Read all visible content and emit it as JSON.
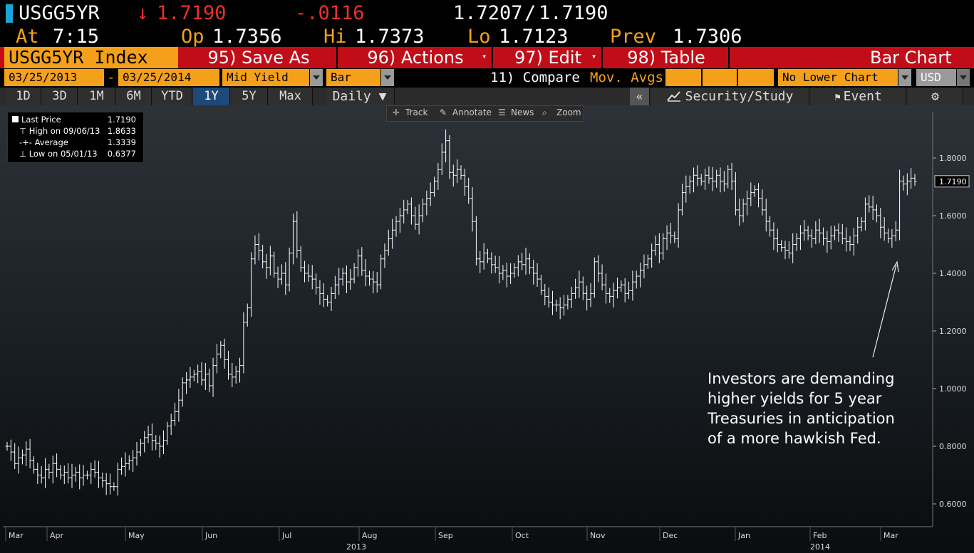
{
  "quote": {
    "ticker": "USGG5YR",
    "arrow": "↓",
    "last": "1.7190",
    "change": "-.0116",
    "bid_ask": "1.7207",
    "slash": "/",
    "ask": "1.7190",
    "at_label": "At",
    "time": "7:15",
    "op_label": "Op",
    "open": "1.7356",
    "hi_label": "Hi",
    "high": "1.7373",
    "lo_label": "Lo",
    "low": "1.7123",
    "prev_label": "Prev",
    "prev": "1.7306"
  },
  "toolbar": {
    "index_label": "USGG5YR Index",
    "save_as": "95) Save As",
    "actions": "96) Actions",
    "edit": "97) Edit",
    "table": "98) Table",
    "chart_type": "Bar Chart"
  },
  "settings": {
    "start_date": "03/25/2013",
    "dash": "-",
    "end_date": "03/25/2014",
    "field": "Mid Yield",
    "style": "Bar",
    "compare": "11) Compare",
    "mov_avgs": "Mov. Avgs",
    "lower_chart": "No Lower Chart",
    "currency": "USD"
  },
  "periods": [
    "1D",
    "3D",
    "1M",
    "6M",
    "YTD",
    "1Y",
    "5Y",
    "Max"
  ],
  "active_period": "1Y",
  "frequency": "Daily ▼",
  "right_tools": {
    "collapse": "«",
    "security_study": "Security/Study",
    "event": "Event",
    "gear": "⚙"
  },
  "chart_tools": {
    "track": "Track",
    "annotate": "Annotate",
    "news": "News",
    "zoom": "Zoom"
  },
  "legend": {
    "last_label": "Last Price",
    "last_value": "1.7190",
    "high_label": "High on 09/06/13",
    "high_value": "1.8633",
    "avg_label": "Average",
    "avg_value": "1.3339",
    "low_label": "Low on 05/01/13",
    "low_value": "0.6377"
  },
  "annotation": {
    "lines": [
      "Investors are demanding",
      "higher yields for 5 year",
      "Treasuries in anticipation",
      "of a more hawkish Fed."
    ]
  },
  "colors": {
    "orange": "#f4a01b",
    "red": "#e5322d",
    "toolbar_red": "#c00d18",
    "active_blue": "#1d4a79"
  },
  "chart_data": {
    "type": "bar",
    "title": "",
    "xlabel": "",
    "ylabel": "",
    "ylim": [
      0.52,
      1.92
    ],
    "yticks": [
      0.6,
      0.8,
      1.0,
      1.2,
      1.4,
      1.6,
      1.8
    ],
    "ytick_labels": [
      "0.6000",
      "0.8000",
      "1.0000",
      "1.2000",
      "1.4000",
      "1.6000",
      "1.8000"
    ],
    "last_price_label": "1.7190",
    "last_price": 1.719,
    "x_month_labels": [
      "Mar",
      "Apr",
      "May",
      "Jun",
      "Jul",
      "Aug",
      "Sep",
      "Oct",
      "Nov",
      "Dec",
      "Jan",
      "Feb",
      "Mar"
    ],
    "x_year_labels": [
      "2013",
      "2014"
    ],
    "closes": [
      0.8,
      0.78,
      0.74,
      0.76,
      0.77,
      0.79,
      0.75,
      0.72,
      0.7,
      0.69,
      0.72,
      0.71,
      0.74,
      0.72,
      0.7,
      0.71,
      0.69,
      0.7,
      0.71,
      0.69,
      0.7,
      0.7,
      0.72,
      0.71,
      0.69,
      0.68,
      0.67,
      0.66,
      0.66,
      0.72,
      0.73,
      0.74,
      0.75,
      0.76,
      0.78,
      0.81,
      0.83,
      0.84,
      0.82,
      0.81,
      0.8,
      0.82,
      0.87,
      0.89,
      0.92,
      0.96,
      1.02,
      1.03,
      1.04,
      1.05,
      1.06,
      1.03,
      1.05,
      1.01,
      1.08,
      1.12,
      1.15,
      1.1,
      1.05,
      1.04,
      1.06,
      1.08,
      1.23,
      1.28,
      1.45,
      1.5,
      1.48,
      1.44,
      1.42,
      1.46,
      1.4,
      1.38,
      1.4,
      1.36,
      1.47,
      1.58,
      1.48,
      1.42,
      1.4,
      1.39,
      1.38,
      1.35,
      1.33,
      1.31,
      1.3,
      1.33,
      1.36,
      1.38,
      1.4,
      1.37,
      1.38,
      1.42,
      1.46,
      1.41,
      1.39,
      1.38,
      1.37,
      1.36,
      1.45,
      1.48,
      1.52,
      1.55,
      1.58,
      1.6,
      1.62,
      1.64,
      1.6,
      1.57,
      1.6,
      1.64,
      1.66,
      1.68,
      1.72,
      1.76,
      1.82,
      1.86,
      1.75,
      1.74,
      1.76,
      1.74,
      1.7,
      1.66,
      1.58,
      1.45,
      1.44,
      1.47,
      1.45,
      1.43,
      1.42,
      1.4,
      1.41,
      1.39,
      1.4,
      1.42,
      1.44,
      1.43,
      1.45,
      1.42,
      1.4,
      1.38,
      1.34,
      1.32,
      1.3,
      1.29,
      1.29,
      1.28,
      1.29,
      1.31,
      1.33,
      1.35,
      1.37,
      1.33,
      1.31,
      1.33,
      1.44,
      1.4,
      1.36,
      1.33,
      1.32,
      1.34,
      1.35,
      1.36,
      1.33,
      1.34,
      1.37,
      1.39,
      1.41,
      1.43,
      1.45,
      1.48,
      1.5,
      1.47,
      1.52,
      1.54,
      1.53,
      1.52,
      1.62,
      1.68,
      1.7,
      1.72,
      1.74,
      1.73,
      1.72,
      1.74,
      1.73,
      1.72,
      1.74,
      1.72,
      1.71,
      1.76,
      1.72,
      1.62,
      1.6,
      1.64,
      1.66,
      1.68,
      1.69,
      1.66,
      1.62,
      1.58,
      1.55,
      1.52,
      1.5,
      1.49,
      1.48,
      1.47,
      1.5,
      1.52,
      1.54,
      1.55,
      1.53,
      1.52,
      1.55,
      1.54,
      1.52,
      1.51,
      1.53,
      1.55,
      1.54,
      1.52,
      1.51,
      1.5,
      1.53,
      1.56,
      1.58,
      1.64,
      1.63,
      1.62,
      1.6,
      1.56,
      1.54,
      1.52,
      1.53,
      1.55,
      1.72,
      1.71,
      1.72,
      1.73,
      1.719
    ]
  }
}
